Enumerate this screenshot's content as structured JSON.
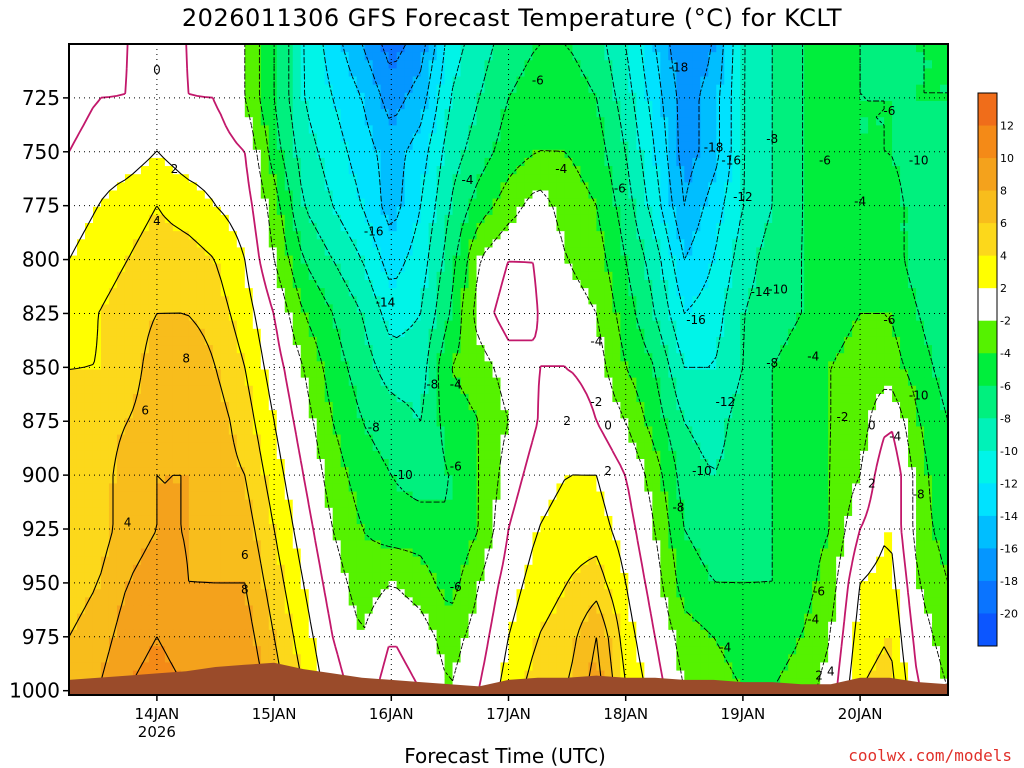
{
  "title": "2026011306 GFS Forecast Temperature (°C) for KCLT",
  "xlabel": "Forecast Time (UTC)",
  "credit": "coolwx.com/models",
  "chart_data": {
    "type": "heatmap",
    "title": "2026011306 GFS Forecast Temperature (°C) for KCLT",
    "xlabel": "Forecast Time (UTC)",
    "ylabel": "",
    "x_start_day": 13.25,
    "x_end_day": 20.75,
    "x_ticks": [
      {
        "day": 14,
        "label": "14JAN",
        "sub": "2026"
      },
      {
        "day": 15,
        "label": "15JAN",
        "sub": ""
      },
      {
        "day": 16,
        "label": "16JAN",
        "sub": ""
      },
      {
        "day": 17,
        "label": "17JAN",
        "sub": ""
      },
      {
        "day": 18,
        "label": "18JAN",
        "sub": ""
      },
      {
        "day": 19,
        "label": "19JAN",
        "sub": ""
      },
      {
        "day": 20,
        "label": "20JAN",
        "sub": ""
      }
    ],
    "y_ticks": [
      725,
      750,
      775,
      800,
      825,
      850,
      875,
      900,
      925,
      950,
      975,
      1000
    ],
    "y_top": 700,
    "y_bottom": 1002,
    "levels": [
      700,
      725,
      750,
      775,
      800,
      825,
      850,
      875,
      900,
      925,
      950,
      975,
      1000
    ],
    "times_day": [
      13.25,
      13.5,
      13.75,
      14.0,
      14.25,
      14.5,
      14.75,
      15.0,
      15.25,
      15.5,
      15.75,
      16.0,
      16.25,
      16.5,
      16.75,
      17.0,
      17.25,
      17.5,
      17.75,
      18.0,
      18.25,
      18.5,
      18.75,
      19.0,
      19.25,
      19.5,
      19.75,
      20.0,
      20.25,
      20.5,
      20.75
    ],
    "temperature_c": [
      [
        -2,
        -1,
        0,
        1,
        0,
        -1,
        -2,
        -6,
        -10,
        -13,
        -16,
        -19,
        -17,
        -11,
        -9,
        -7,
        -6,
        -6,
        -7,
        -10,
        -14,
        -18,
        -16,
        -10,
        -8,
        -6,
        -5,
        -6,
        -7,
        -6,
        -6
      ],
      [
        -1,
        0,
        0,
        1,
        0,
        0,
        -2,
        -6,
        -10,
        -12,
        -14,
        -17,
        -15,
        -10,
        -8,
        -6,
        -5,
        -5,
        -6,
        -9,
        -13,
        -17,
        -15,
        -10,
        -8,
        -6,
        -5,
        -6,
        -6,
        -6,
        -6
      ],
      [
        0,
        1,
        1,
        2,
        1,
        1,
        0,
        -5,
        -9,
        -11,
        -13,
        -15,
        -13,
        -9,
        -7,
        -5,
        -4,
        -4,
        -5,
        -8,
        -12,
        -17,
        -15,
        -10,
        -8,
        -6,
        -5,
        -6,
        -6,
        -7,
        -7
      ],
      [
        1,
        2,
        3,
        4,
        3,
        2,
        1,
        -3,
        -8,
        -10,
        -12,
        -15,
        -12,
        -8,
        -5,
        -3,
        -1,
        -3,
        -4,
        -7,
        -11,
        -16,
        -13,
        -10,
        -8,
        -6,
        -5,
        -5,
        -5,
        -7,
        -8
      ],
      [
        2,
        3,
        4,
        5,
        5,
        4,
        2,
        -2,
        -6,
        -8,
        -10,
        -13,
        -11,
        -7,
        -2,
        0,
        0,
        -2,
        -3,
        -6,
        -9,
        -14,
        -12,
        -9,
        -7,
        -6,
        -5,
        -5,
        -5,
        -7,
        -8
      ],
      [
        3,
        4,
        5,
        6,
        6,
        5,
        3,
        0,
        -4,
        -6,
        -8,
        -11,
        -10,
        -6,
        -1,
        1,
        0,
        -1,
        -2,
        -5,
        -8,
        -12,
        -11,
        -8,
        -7,
        -6,
        -5,
        -4,
        -4,
        -6,
        -8
      ],
      [
        4,
        4,
        5,
        7,
        8,
        6,
        4,
        1,
        -2,
        -5,
        -7,
        -9,
        -9,
        -4,
        -3,
        -1,
        0,
        0,
        -1,
        -4,
        -6,
        -10,
        -10,
        -8,
        -6,
        -5,
        -4,
        -3,
        -3,
        -5,
        -7
      ],
      [
        4,
        5,
        6,
        7,
        8,
        7,
        5,
        2,
        -1,
        -4,
        -6,
        -7,
        -8,
        -5,
        -4,
        -2,
        0,
        2,
        0,
        -2,
        -5,
        -8,
        -9,
        -7,
        -6,
        -5,
        -4,
        -3,
        0,
        -4,
        -6
      ],
      [
        4,
        5,
        7,
        8,
        8,
        7,
        6,
        3,
        0,
        -3,
        -5,
        -6,
        -7,
        -6,
        -4,
        -1,
        1,
        2,
        2,
        0,
        -3,
        -7,
        -8,
        -7,
        -6,
        -5,
        -4,
        -2,
        2,
        -3,
        -6
      ],
      [
        4,
        5,
        7,
        8,
        8,
        7,
        7,
        4,
        1,
        -2,
        -4,
        -5,
        -5,
        -6,
        -4,
        0,
        2,
        3,
        3,
        1,
        -2,
        -6,
        -7,
        -7,
        -6,
        -5,
        -4,
        0,
        2,
        -3,
        -5
      ],
      [
        5,
        6,
        8,
        9,
        8,
        8,
        8,
        5,
        2,
        -1,
        -3,
        -2,
        -3,
        -5,
        -2,
        1,
        3,
        4,
        5,
        2,
        -1,
        -5,
        -6,
        -6,
        -6,
        -5,
        -3,
        2,
        3,
        -2,
        -4
      ],
      [
        6,
        7,
        9,
        10,
        9,
        9,
        9,
        6,
        3,
        0,
        -2,
        0,
        -1,
        -3,
        -1,
        2,
        4,
        5,
        8,
        3,
        0,
        -3,
        -4,
        -5,
        -5,
        -4,
        -2,
        3,
        4,
        -1,
        -3
      ],
      [
        7,
        8,
        10,
        11,
        10,
        10,
        10,
        7,
        4,
        1,
        -1,
        1,
        0,
        -2,
        0,
        3,
        5,
        6,
        9,
        4,
        1,
        -2,
        -3,
        -4,
        -4,
        -3,
        -1,
        4,
        5,
        0,
        -2
      ]
    ],
    "surface_pressure_hpa": [
      995,
      994,
      993,
      992,
      991,
      989,
      988,
      987,
      990,
      992,
      994,
      995,
      996,
      997,
      998,
      995,
      994,
      994,
      993,
      994,
      994,
      995,
      995,
      996,
      996,
      997,
      997,
      994,
      994,
      996,
      997
    ],
    "contour_labels": [
      {
        "text": "0",
        "day": 14.0,
        "p": 712
      },
      {
        "text": "2",
        "day": 14.15,
        "p": 758
      },
      {
        "text": "4",
        "day": 14.0,
        "p": 782
      },
      {
        "text": "8",
        "day": 14.25,
        "p": 846
      },
      {
        "text": "6",
        "day": 13.9,
        "p": 870
      },
      {
        "text": "4",
        "day": 13.75,
        "p": 922
      },
      {
        "text": "6",
        "day": 14.75,
        "p": 937
      },
      {
        "text": "8",
        "day": 14.75,
        "p": 953
      },
      {
        "text": "-16",
        "day": 15.85,
        "p": 787
      },
      {
        "text": "-14",
        "day": 15.95,
        "p": 820
      },
      {
        "text": "-8",
        "day": 15.85,
        "p": 878
      },
      {
        "text": "-10",
        "day": 16.1,
        "p": 900
      },
      {
        "text": "-8",
        "day": 16.35,
        "p": 858
      },
      {
        "text": "-4",
        "day": 16.55,
        "p": 858
      },
      {
        "text": "-6",
        "day": 16.55,
        "p": 896
      },
      {
        "text": "-6",
        "day": 16.55,
        "p": 952
      },
      {
        "text": "-4",
        "day": 16.65,
        "p": 763
      },
      {
        "text": "-6",
        "day": 17.25,
        "p": 717
      },
      {
        "text": "-4",
        "day": 17.45,
        "p": 758
      },
      {
        "text": "-6",
        "day": 17.95,
        "p": 767
      },
      {
        "text": "-2",
        "day": 17.75,
        "p": 866
      },
      {
        "text": "2",
        "day": 17.5,
        "p": 875
      },
      {
        "text": "0",
        "day": 17.85,
        "p": 877
      },
      {
        "text": "2",
        "day": 17.85,
        "p": 898
      },
      {
        "text": "-4",
        "day": 17.75,
        "p": 838
      },
      {
        "text": "-18",
        "day": 18.45,
        "p": 711
      },
      {
        "text": "-18",
        "day": 18.75,
        "p": 748
      },
      {
        "text": "-16",
        "day": 18.9,
        "p": 754
      },
      {
        "text": "-12",
        "day": 19.0,
        "p": 771
      },
      {
        "text": "-16",
        "day": 18.6,
        "p": 828
      },
      {
        "text": "-14",
        "day": 19.15,
        "p": 815
      },
      {
        "text": "-10",
        "day": 19.3,
        "p": 814
      },
      {
        "text": "-12",
        "day": 18.85,
        "p": 866
      },
      {
        "text": "-8",
        "day": 19.25,
        "p": 848
      },
      {
        "text": "-10",
        "day": 18.65,
        "p": 898
      },
      {
        "text": "-8",
        "day": 18.45,
        "p": 915
      },
      {
        "text": "-8",
        "day": 19.25,
        "p": 744
      },
      {
        "text": "-6",
        "day": 19.65,
        "p": 954
      },
      {
        "text": "-4",
        "day": 18.85,
        "p": 980
      },
      {
        "text": "-4",
        "day": 19.6,
        "p": 845
      },
      {
        "text": "-6",
        "day": 19.7,
        "p": 754
      },
      {
        "text": "-4",
        "day": 20.0,
        "p": 773
      },
      {
        "text": "-6",
        "day": 20.25,
        "p": 731
      },
      {
        "text": "-10",
        "day": 20.5,
        "p": 754
      },
      {
        "text": "-6",
        "day": 20.25,
        "p": 828
      },
      {
        "text": "-10",
        "day": 20.5,
        "p": 863
      },
      {
        "text": "-2",
        "day": 19.85,
        "p": 873
      },
      {
        "text": "0",
        "day": 20.1,
        "p": 877
      },
      {
        "text": "-4",
        "day": 20.3,
        "p": 882
      },
      {
        "text": "2",
        "day": 20.1,
        "p": 904
      },
      {
        "text": "-8",
        "day": 20.5,
        "p": 909
      },
      {
        "text": "-4",
        "day": 19.6,
        "p": 967
      },
      {
        "text": "2",
        "day": 19.65,
        "p": 993
      },
      {
        "text": "4",
        "day": 19.75,
        "p": 991
      }
    ],
    "colorbar": {
      "labels": [
        "12",
        "10",
        "8",
        "6",
        "4",
        "2",
        "-2",
        "-4",
        "-6",
        "-8",
        "-10",
        "-12",
        "-14",
        "-16",
        "-18",
        "-20"
      ],
      "bins": [
        {
          "lo": 12,
          "hi": 14,
          "color": "#f06d1a"
        },
        {
          "lo": 10,
          "hi": 12,
          "color": "#f48a17"
        },
        {
          "lo": 8,
          "hi": 10,
          "color": "#f4a21c"
        },
        {
          "lo": 6,
          "hi": 8,
          "color": "#f8bd1c"
        },
        {
          "lo": 4,
          "hi": 6,
          "color": "#fcd81b"
        },
        {
          "lo": 2,
          "hi": 4,
          "color": "#ffff00"
        },
        {
          "lo": -2,
          "hi": 2,
          "color": "#ffffff"
        },
        {
          "lo": -4,
          "hi": -2,
          "color": "#55f200"
        },
        {
          "lo": -6,
          "hi": -4,
          "color": "#00ee3c"
        },
        {
          "lo": -8,
          "hi": -6,
          "color": "#00f07e"
        },
        {
          "lo": -10,
          "hi": -8,
          "color": "#00f2b8"
        },
        {
          "lo": -12,
          "hi": -10,
          "color": "#00f4e8"
        },
        {
          "lo": -14,
          "hi": -12,
          "color": "#00e2ff"
        },
        {
          "lo": -16,
          "hi": -14,
          "color": "#00beff"
        },
        {
          "lo": -18,
          "hi": -16,
          "color": "#0596ff"
        },
        {
          "lo": -20,
          "hi": -18,
          "color": "#0a74ff"
        },
        {
          "lo": -22,
          "hi": -20,
          "color": "#0c56ff"
        }
      ]
    },
    "colors": {
      "terrain": "#9a4b2a",
      "freezing_line": "#c2186b",
      "contour": "#000000"
    }
  }
}
